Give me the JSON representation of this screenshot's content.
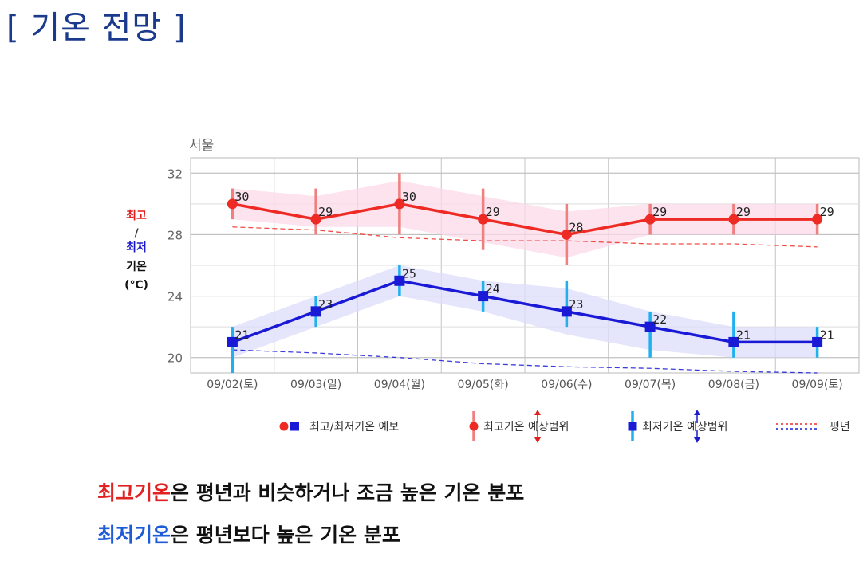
{
  "page": {
    "title": "[ 기온 전망 ]"
  },
  "chart_data": {
    "type": "line",
    "title": "서울",
    "ylabel_lines": [
      "최고",
      "/",
      "최저",
      "기온",
      "(℃)"
    ],
    "categories": [
      "09/02(토)",
      "09/03(일)",
      "09/04(월)",
      "09/05(화)",
      "09/06(수)",
      "09/07(목)",
      "09/08(금)",
      "09/09(토)"
    ],
    "ylim": [
      19,
      33
    ],
    "yticks": [
      20,
      24,
      28,
      32
    ],
    "grid": true,
    "series": [
      {
        "key": "max",
        "values": [
          30,
          29,
          30,
          29,
          28,
          29,
          29,
          29
        ],
        "range_low": [
          29,
          28,
          28,
          27,
          26,
          28,
          28,
          28
        ],
        "range_high": [
          31,
          31,
          32,
          31,
          30,
          30,
          30,
          30
        ],
        "band_low": [
          29,
          28.5,
          28.5,
          27.5,
          26.5,
          28,
          28,
          28
        ],
        "band_high": [
          31,
          30.5,
          31.5,
          30.5,
          29.5,
          30,
          30,
          30
        ],
        "normal": [
          28.5,
          28.3,
          27.8,
          27.6,
          27.6,
          27.4,
          27.4,
          27.2
        ],
        "color": "#ee2a24",
        "range_color": "#f08080",
        "band_color": "#fbd9e8",
        "marker": "circle"
      },
      {
        "key": "min",
        "values": [
          21,
          23,
          25,
          24,
          23,
          22,
          21,
          21
        ],
        "range_low": [
          19,
          22,
          24,
          23,
          22,
          20,
          20,
          20
        ],
        "range_high": [
          22,
          24,
          26,
          25,
          25,
          23,
          23,
          22
        ],
        "band_low": [
          20,
          22,
          24,
          23,
          21.5,
          20.5,
          20,
          20
        ],
        "band_high": [
          22,
          24,
          26,
          25,
          24.5,
          23,
          22,
          22
        ],
        "normal": [
          20.5,
          20.3,
          20.0,
          19.6,
          19.4,
          19.3,
          19.1,
          19.0
        ],
        "color": "#1a1ad6",
        "range_color": "#20b0ee",
        "band_color": "#dcdcfa",
        "marker": "square"
      }
    ],
    "legend": {
      "forecast": "최고/최저기온 예보",
      "max_range": "최고기온 예상범위",
      "min_range": "최저기온 예상범위",
      "normal": "평년"
    }
  },
  "captions": [
    {
      "highlight": "최고기온",
      "rest": "은 평년과 비슷하거나 조금 높은 기온 분포"
    },
    {
      "highlight": "최저기온",
      "rest": "은 평년보다 높은 기온 분포"
    }
  ]
}
